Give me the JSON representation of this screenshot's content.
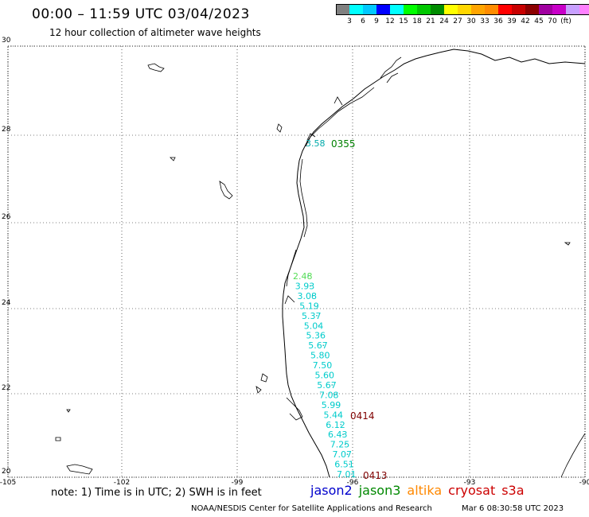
{
  "header": {
    "title": "00:00 – 11:59 UTC 03/04/2023",
    "subtitle": "12 hour collection of altimeter wave heights"
  },
  "colorbar": {
    "colors": [
      "#808080",
      "#00ffff",
      "#00c8ff",
      "#0000ff",
      "#00ffff",
      "#00ff00",
      "#00c800",
      "#008c00",
      "#ffff00",
      "#ffd700",
      "#ffa500",
      "#ff8c00",
      "#ff0000",
      "#c80000",
      "#8b0000",
      "#a000a0",
      "#c800c8",
      "#c8a0ff",
      "#ff80ff",
      "#000000"
    ],
    "labels": [
      "3",
      "6",
      "9",
      "12",
      "15",
      "18",
      "21",
      "24",
      "27",
      "30",
      "33",
      "36",
      "39",
      "42",
      "45",
      "70",
      "(ft)"
    ]
  },
  "axes": {
    "lat_labels": [
      "30",
      "28",
      "26",
      "24",
      "22",
      "20"
    ],
    "lon_labels": [
      "-105",
      "-102",
      "-99",
      "-96",
      "-93",
      "-90"
    ]
  },
  "tracks": [
    {
      "name": "jason3-north",
      "color": "#00aaaa",
      "pass_label": "0355",
      "pass_color": "#008000",
      "values": [
        "3.58"
      ]
    },
    {
      "name": "main",
      "pass_label": "0414",
      "pass_color": "#800000",
      "pass_label_2": "0413",
      "values": [
        "2.48",
        "3.93",
        "3.08",
        "5.19",
        "5.37",
        "5.04",
        "5.36",
        "5.67",
        "5.80",
        "7.50",
        "5.60",
        "5.67",
        "7.08",
        "5.99",
        "5.44",
        "6.12",
        "6.43",
        "7.25",
        "7.07",
        "6.51",
        "7.01"
      ],
      "colors": [
        "#55dd55",
        "#00cccc",
        "#00cccc",
        "#00cccc",
        "#00cccc",
        "#00cccc",
        "#00cccc",
        "#00cccc",
        "#00cccc",
        "#00cccc",
        "#00cccc",
        "#00cccc",
        "#00cccc",
        "#00cccc",
        "#00cccc",
        "#00cccc",
        "#00cccc",
        "#00cccc",
        "#00cccc",
        "#00cccc",
        "#00cccc"
      ]
    }
  ],
  "footer": {
    "note": "note:  1) Time is in UTC;  2) SWH is in feet",
    "legend": [
      {
        "label": "jason2",
        "color": "#0000cc"
      },
      {
        "label": "jason3",
        "color": "#008800"
      },
      {
        "label": "altika",
        "color": "#ff8800"
      },
      {
        "label": "cryosat",
        "color": "#cc0000"
      },
      {
        "label": "s3a",
        "color": "#cc0000"
      }
    ],
    "credit": "NOAA/NESDIS Center for Satellite Applications and Research",
    "created": "Mar  6 08:30:58 UTC 2023"
  }
}
